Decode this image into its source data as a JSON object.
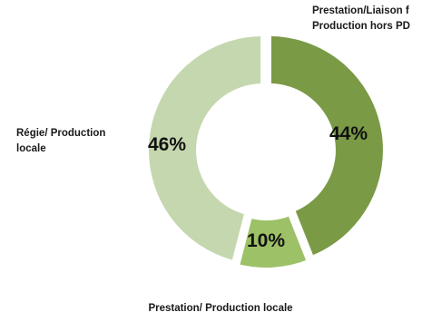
{
  "chart_data": {
    "type": "pie",
    "donut": true,
    "categories": [
      "Prestation/Liaison froide/Production hors PDL",
      "Prestation/ Production locale",
      "Régie/ Production locale"
    ],
    "values": [
      44,
      10,
      46
    ],
    "value_labels": [
      "44%",
      "10%",
      "46%"
    ],
    "category_labels": [
      [
        "Prestation/Liaison f",
        "Production hors PD"
      ],
      [
        "Prestation/ Production locale"
      ],
      [
        "Régie/ Production",
        "locale"
      ]
    ],
    "colors": [
      "#7a9a46",
      "#9dc167",
      "#c5d7ae"
    ],
    "title": "",
    "legend": "none"
  }
}
